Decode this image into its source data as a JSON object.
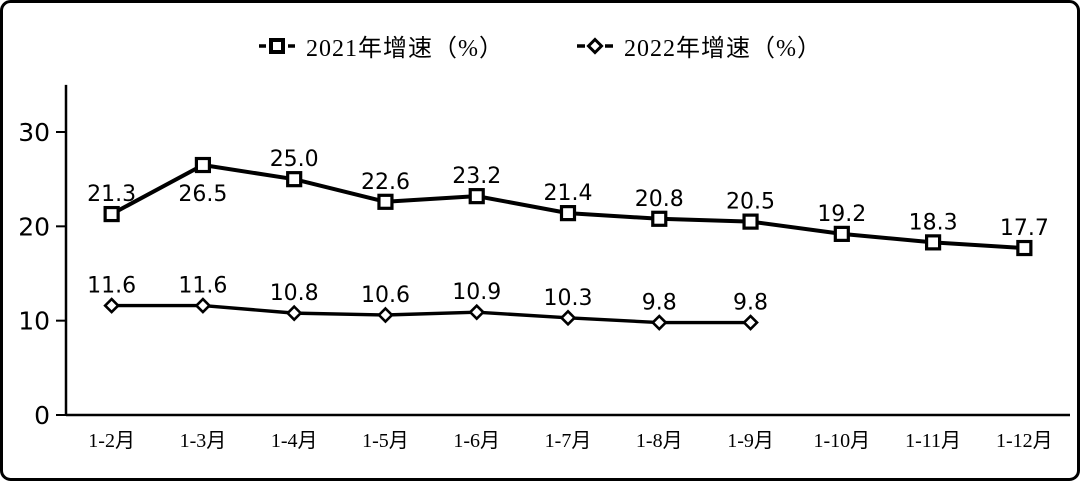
{
  "legend": {
    "items": [
      {
        "label": "2021年增速（%）",
        "marker": "square-marker-icon"
      },
      {
        "label": "2022年增速（%）",
        "marker": "diamond-marker-icon"
      }
    ]
  },
  "chart_data": {
    "type": "line",
    "title": "",
    "xlabel": "",
    "ylabel": "",
    "categories": [
      "1-2月",
      "1-3月",
      "1-4月",
      "1-5月",
      "1-6月",
      "1-7月",
      "1-8月",
      "1-9月",
      "1-10月",
      "1-11月",
      "1-12月"
    ],
    "yticks": [
      0,
      10,
      20,
      30
    ],
    "ytick_labels": [
      "0",
      "10",
      "20",
      "30"
    ],
    "ylim": [
      0,
      35
    ],
    "grid": false,
    "legend_position": "top",
    "line_color": "#000000",
    "marker_fill": "#ffffff",
    "text_color": "#000000",
    "series": [
      {
        "name": "2021年增速（%）",
        "marker": "square",
        "values": [
          21.3,
          26.5,
          25.0,
          22.6,
          23.2,
          21.4,
          20.8,
          20.5,
          19.2,
          18.3,
          17.7
        ],
        "labels": [
          "21.3",
          "26.5",
          "25.0",
          "22.6",
          "23.2",
          "21.4",
          "20.8",
          "20.5",
          "19.2",
          "18.3",
          "17.7"
        ]
      },
      {
        "name": "2022年增速（%）",
        "marker": "diamond",
        "values": [
          11.6,
          11.6,
          10.8,
          10.6,
          10.9,
          10.3,
          9.8,
          9.8
        ],
        "labels": [
          "11.6",
          "11.6",
          "10.8",
          "10.6",
          "10.9",
          "10.3",
          "9.8",
          "9.8"
        ]
      }
    ]
  }
}
